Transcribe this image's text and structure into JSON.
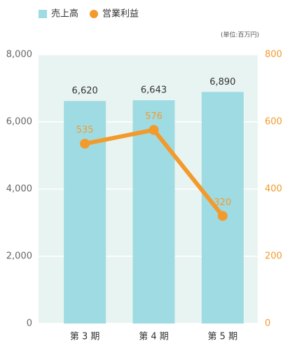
{
  "chart_data": {
    "type": "bar",
    "unit_note": "(単位:百万円)",
    "categories": [
      "第 3 期",
      "第 4 期",
      "第 5 期"
    ],
    "series": [
      {
        "name": "売上高",
        "color": "#9fdbe2",
        "values": [
          6620,
          6643,
          6890
        ],
        "value_labels": [
          "6,620",
          "6,643",
          "6,890"
        ]
      },
      {
        "name": "営業利益",
        "color": "#f39a2c",
        "type": "line",
        "axis": "y2",
        "values": [
          535,
          576,
          320
        ]
      }
    ],
    "ylim": [
      0,
      8000
    ],
    "yticks": [
      0,
      {
        "value": 2000,
        "label": "2,000"
      },
      {
        "value": 4000,
        "label": "4,000"
      },
      {
        "value": 6000,
        "label": "6,000"
      },
      {
        "value": 8000,
        "label": "8,000"
      }
    ],
    "y2lim": [
      0,
      800
    ],
    "y2ticks": [
      0,
      200,
      400,
      600,
      800
    ],
    "grid": true
  }
}
